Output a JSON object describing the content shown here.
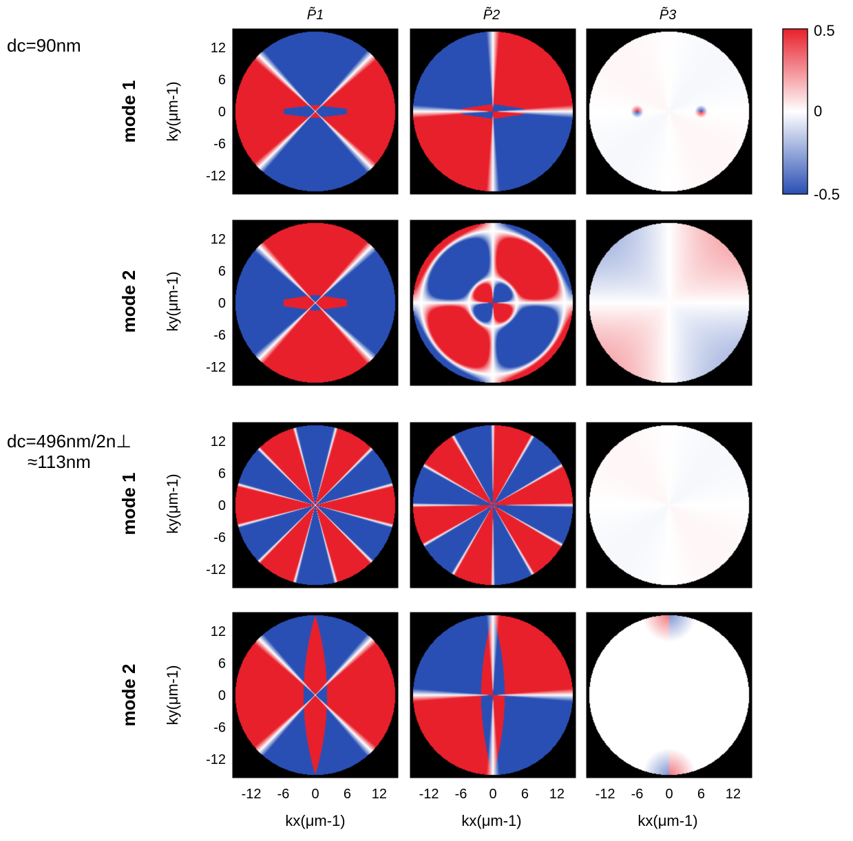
{
  "chart_data": {
    "type": "heatmap",
    "column_titles": [
      "P̃1",
      "P̃2",
      "P̃3"
    ],
    "groups": [
      {
        "label_line1": "dc=90nm",
        "label_line2": ""
      },
      {
        "label_line1": "dc=496nm/2n⊥",
        "label_line2": "≈113nm"
      }
    ],
    "row_labels": [
      "mode 1",
      "mode 2",
      "mode 1",
      "mode 2"
    ],
    "ylabel": "ky(μm-1)",
    "xlabel": "kx(μm-1)",
    "xticks": [
      -12,
      -6,
      0,
      6,
      12
    ],
    "yticks": [
      12,
      6,
      0,
      -6,
      -12
    ],
    "xlim": [
      -15.5,
      15.5
    ],
    "ylim": [
      -15.5,
      15.5
    ],
    "colorbar": {
      "min": -0.5,
      "max": 0.5,
      "ticks": [
        "0.5",
        "0",
        "-0.5"
      ],
      "colors": [
        "#2a4fb4",
        "#ffffff",
        "#e8202c"
      ]
    },
    "panel_background": "#000000",
    "disk_radius": 15,
    "panels": [
      {
        "row": 0,
        "col": 0,
        "pattern": "cos2",
        "amp": 0.5,
        "lobes": "blue-horizontal"
      },
      {
        "row": 0,
        "col": 1,
        "pattern": "sin2",
        "amp": 0.5,
        "lobes": "blue-horizontal"
      },
      {
        "row": 0,
        "col": 2,
        "pattern": "near-zero",
        "amp": 0.02,
        "lobes": "dipoles-at-kx=±6"
      },
      {
        "row": 1,
        "col": 0,
        "pattern": "-cos2",
        "amp": 0.5,
        "lobes": "red-horizontal"
      },
      {
        "row": 1,
        "col": 1,
        "pattern": "-sin2 with extra vertical bands",
        "amp": 0.5
      },
      {
        "row": 1,
        "col": 2,
        "pattern": "weak quadrant gradient",
        "amp": 0.2
      },
      {
        "row": 2,
        "col": 0,
        "pattern": "cos6",
        "amp": 0.5
      },
      {
        "row": 2,
        "col": 1,
        "pattern": "sin6",
        "amp": 0.5
      },
      {
        "row": 2,
        "col": 2,
        "pattern": "near-zero",
        "amp": 0.02
      },
      {
        "row": 3,
        "col": 0,
        "pattern": "cos2 with vertical lens",
        "amp": 0.5
      },
      {
        "row": 3,
        "col": 1,
        "pattern": "sin2 with vertical lens",
        "amp": 0.5
      },
      {
        "row": 3,
        "col": 2,
        "pattern": "near-zero with poles at ky=±15",
        "amp": 0.2
      }
    ]
  }
}
